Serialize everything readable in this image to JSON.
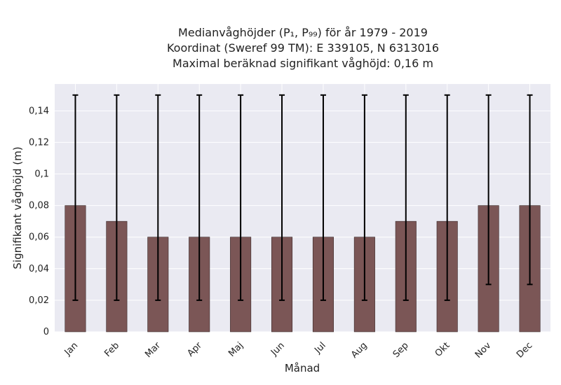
{
  "chart_data": {
    "type": "bar",
    "title_lines": [
      "Medianvåghöjder (P₁, P₉₉) för år 1979 - 2019",
      "Koordinat (Sweref 99 TM): E 339105, N 6313016",
      "Maximal beräknad signifikant våghöjd: 0,16 m"
    ],
    "xlabel": "Månad",
    "ylabel": "Signifikant våghöjd (m)",
    "categories": [
      "Jan",
      "Feb",
      "Mar",
      "Apr",
      "Maj",
      "Jun",
      "Jul",
      "Aug",
      "Sep",
      "Okt",
      "Nov",
      "Dec"
    ],
    "values": [
      0.08,
      0.07,
      0.06,
      0.06,
      0.06,
      0.06,
      0.06,
      0.06,
      0.07,
      0.07,
      0.08,
      0.08
    ],
    "error_low": [
      0.02,
      0.02,
      0.02,
      0.02,
      0.02,
      0.02,
      0.02,
      0.02,
      0.02,
      0.02,
      0.03,
      0.03
    ],
    "error_high": [
      0.15,
      0.15,
      0.15,
      0.15,
      0.15,
      0.15,
      0.15,
      0.15,
      0.15,
      0.15,
      0.15,
      0.15
    ],
    "ylim": [
      0,
      0.157
    ],
    "yticks": [
      0,
      0.02,
      0.04,
      0.06,
      0.08,
      0.1,
      0.12,
      0.14
    ],
    "ytick_labels": [
      "0",
      "0,02",
      "0,04",
      "0,06",
      "0,08",
      "0,1",
      "0,12",
      "0,14"
    ],
    "grid": true,
    "colors": {
      "bar": "#7b5656",
      "bar_edge": "#3a2a2a",
      "error": "#000000",
      "plot_background": "#eaeaf2",
      "grid": "#ffffff"
    }
  }
}
